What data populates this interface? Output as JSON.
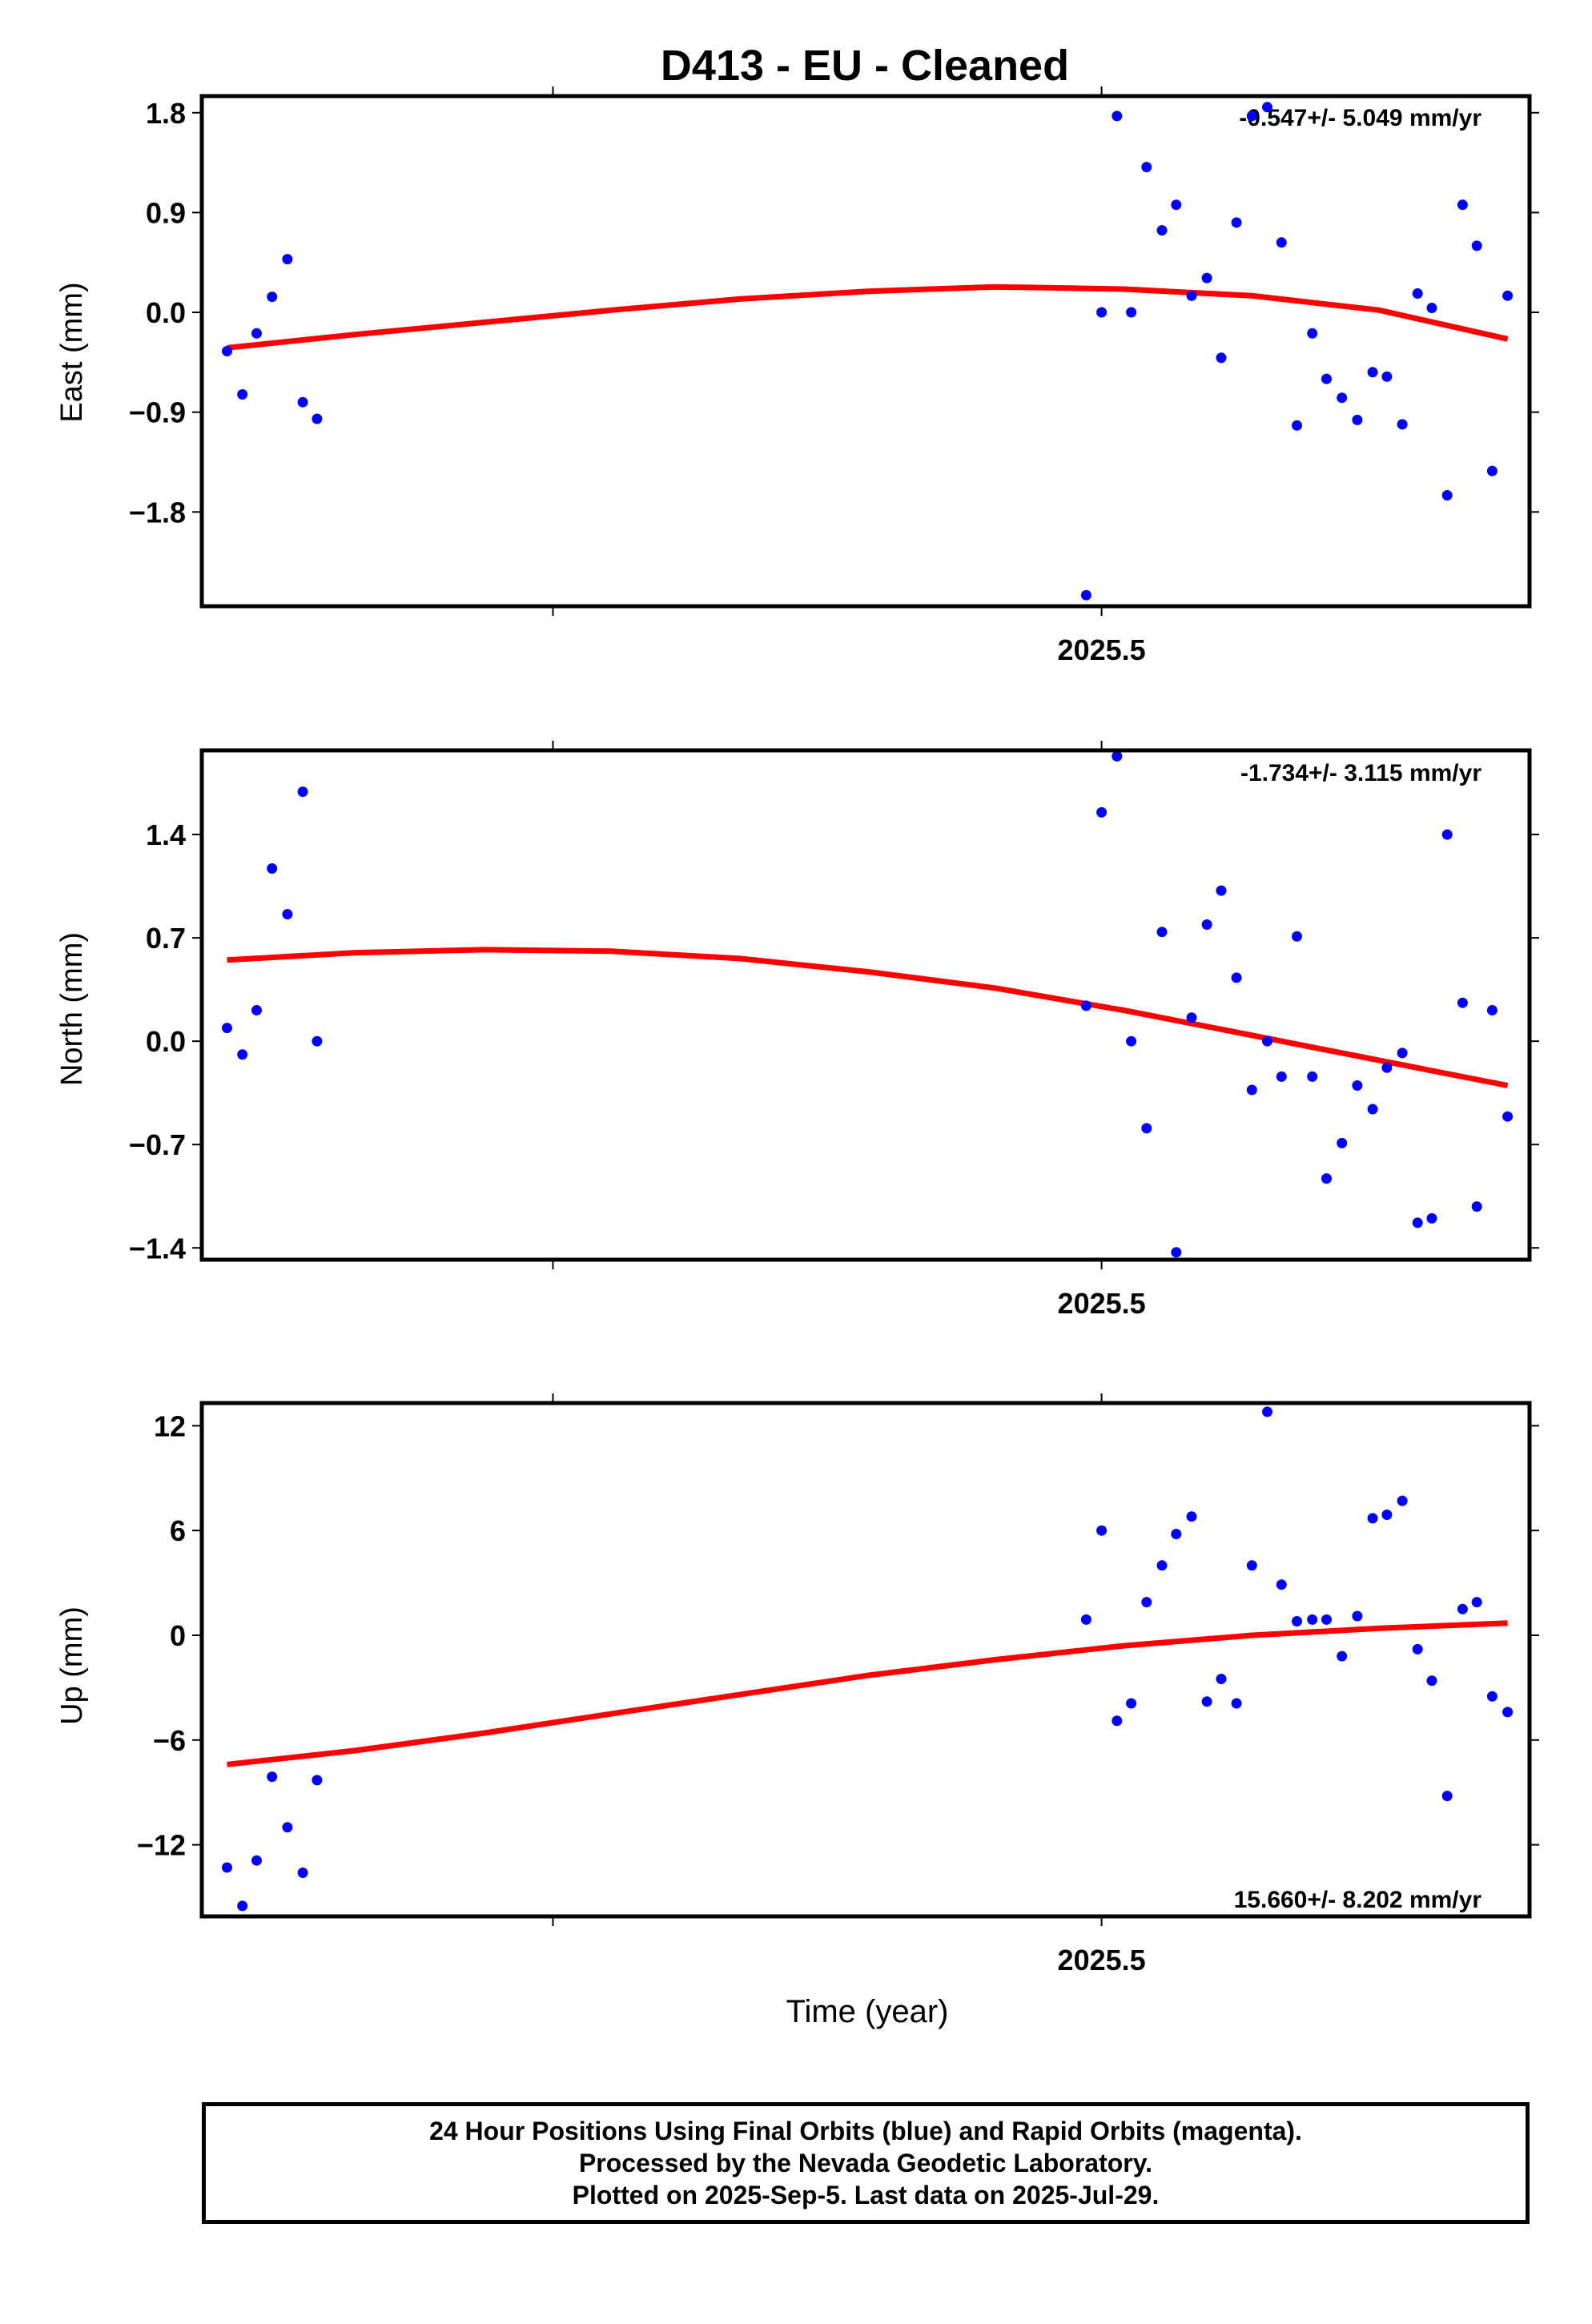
{
  "title": "D413  - EU - Cleaned",
  "xlabel": "Time (year)",
  "footer": {
    "line1": "24 Hour Positions Using Final Orbits (blue) and Rapid Orbits (magenta).",
    "line2": "Processed by the Nevada Geodetic Laboratory.",
    "line3": "Plotted on 2025-Sep-5. Last data on 2025-Jul-29."
  },
  "colors": {
    "data": "#0000ff",
    "fit": "#ff0000"
  },
  "chart_data": [
    {
      "type": "scatter",
      "ylabel": "East (mm)",
      "rate_label": "-0.547+/- 5.049 mm/yr",
      "xlim": [
        2024.68,
        2025.89
      ],
      "ylim": [
        -2.65,
        1.95
      ],
      "yticks": [
        1.8,
        0.9,
        0.0,
        -0.9,
        -1.8
      ],
      "ytick_labels": [
        "1.8",
        "0.9",
        "0.0",
        "−0.9",
        "−1.8"
      ],
      "xticks": [
        2025.0,
        2025.5
      ],
      "xtick_labels": [
        "",
        "2025.5"
      ],
      "x": [
        2024.703,
        2024.717,
        2024.73,
        2024.744,
        2024.758,
        2024.772,
        2024.785,
        2025.486,
        2025.5,
        2025.514,
        2025.527,
        2025.541,
        2025.555,
        2025.568,
        2025.582,
        2025.596,
        2025.609,
        2025.623,
        2025.637,
        2025.651,
        2025.664,
        2025.678,
        2025.692,
        2025.705,
        2025.719,
        2025.733,
        2025.747,
        2025.76,
        2025.774,
        2025.788,
        2025.801,
        2025.815,
        2025.829,
        2025.842,
        2025.856,
        2025.87
      ],
      "y": [
        -0.35,
        -0.74,
        -0.19,
        0.14,
        0.48,
        -0.81,
        -0.96,
        -2.55,
        0.0,
        1.77,
        0.0,
        1.31,
        0.74,
        0.97,
        0.15,
        0.31,
        -0.41,
        0.81,
        1.77,
        1.85,
        0.63,
        -1.02,
        -0.19,
        -0.6,
        -0.77,
        -0.97,
        -0.54,
        -0.58,
        -1.01,
        0.17,
        0.04,
        -1.65,
        0.97,
        0.6,
        -1.43,
        0.15
      ],
      "fit": {
        "x": [
          2024.703,
          2024.82,
          2024.937,
          2025.053,
          2025.17,
          2025.287,
          2025.403,
          2025.52,
          2025.637,
          2025.753,
          2025.87
        ],
        "y": [
          -0.32,
          -0.2,
          -0.09,
          0.02,
          0.12,
          0.19,
          0.23,
          0.21,
          0.15,
          0.02,
          -0.24
        ]
      }
    },
    {
      "type": "scatter",
      "ylabel": "North (mm)",
      "rate_label": "-1.734+/- 3.115 mm/yr",
      "xlim": [
        2024.68,
        2025.89
      ],
      "ylim": [
        -1.48,
        1.97
      ],
      "yticks": [
        1.4,
        0.7,
        0.0,
        -0.7,
        -1.4
      ],
      "ytick_labels": [
        "1.4",
        "0.7",
        "0.0",
        "−0.7",
        "−1.4"
      ],
      "xticks": [
        2025.0,
        2025.5
      ],
      "xtick_labels": [
        "",
        "2025.5"
      ],
      "x": [
        2024.703,
        2024.717,
        2024.73,
        2024.744,
        2024.758,
        2024.772,
        2024.785,
        2025.486,
        2025.5,
        2025.514,
        2025.527,
        2025.541,
        2025.555,
        2025.568,
        2025.582,
        2025.596,
        2025.609,
        2025.623,
        2025.637,
        2025.651,
        2025.664,
        2025.678,
        2025.692,
        2025.705,
        2025.719,
        2025.733,
        2025.747,
        2025.76,
        2025.774,
        2025.788,
        2025.801,
        2025.815,
        2025.829,
        2025.842,
        2025.856,
        2025.87
      ],
      "y": [
        0.09,
        -0.09,
        0.21,
        1.17,
        0.86,
        1.69,
        0.0,
        0.24,
        1.55,
        1.93,
        0.0,
        -0.59,
        0.74,
        -1.43,
        0.16,
        0.79,
        1.02,
        0.43,
        -0.33,
        0.0,
        -0.24,
        0.71,
        -0.24,
        -0.93,
        -0.69,
        -0.3,
        -0.46,
        -0.18,
        -0.08,
        -1.23,
        -1.2,
        1.4,
        0.26,
        -1.12,
        0.21,
        -0.51
      ],
      "fit": {
        "x": [
          2024.703,
          2024.82,
          2024.937,
          2025.053,
          2025.17,
          2025.287,
          2025.403,
          2025.52,
          2025.637,
          2025.753,
          2025.87
        ],
        "y": [
          0.55,
          0.6,
          0.62,
          0.61,
          0.56,
          0.47,
          0.36,
          0.21,
          0.04,
          -0.13,
          -0.3
        ]
      }
    },
    {
      "type": "scatter",
      "ylabel": "Up (mm)",
      "rate_label": "15.660+/- 8.202 mm/yr",
      "xlim": [
        2024.68,
        2025.89
      ],
      "ylim": [
        -16.1,
        13.3
      ],
      "yticks": [
        12,
        6,
        0,
        -6,
        -12
      ],
      "ytick_labels": [
        "12",
        "6",
        "0",
        "−6",
        "−12"
      ],
      "xticks": [
        2025.0,
        2025.5
      ],
      "xtick_labels": [
        "",
        "2025.5"
      ],
      "x": [
        2024.703,
        2024.717,
        2024.73,
        2024.744,
        2024.758,
        2024.772,
        2024.785,
        2025.486,
        2025.5,
        2025.514,
        2025.527,
        2025.541,
        2025.555,
        2025.568,
        2025.582,
        2025.596,
        2025.609,
        2025.623,
        2025.637,
        2025.651,
        2025.664,
        2025.678,
        2025.692,
        2025.705,
        2025.719,
        2025.733,
        2025.747,
        2025.76,
        2025.774,
        2025.788,
        2025.801,
        2025.815,
        2025.829,
        2025.842,
        2025.856,
        2025.87
      ],
      "y": [
        -13.3,
        -15.5,
        -12.9,
        -8.1,
        -11.0,
        -13.6,
        -8.3,
        0.9,
        6.0,
        -4.9,
        -3.9,
        1.9,
        4.0,
        5.8,
        6.8,
        -3.8,
        -2.5,
        -3.9,
        4.0,
        12.8,
        2.9,
        0.8,
        0.9,
        0.9,
        -1.2,
        1.1,
        6.7,
        6.9,
        7.7,
        -0.8,
        -2.6,
        -9.2,
        1.5,
        1.9,
        -3.5,
        -4.4
      ],
      "fit": {
        "x": [
          2024.703,
          2024.82,
          2024.937,
          2025.053,
          2025.17,
          2025.287,
          2025.403,
          2025.52,
          2025.637,
          2025.753,
          2025.87
        ],
        "y": [
          -7.4,
          -6.6,
          -5.6,
          -4.5,
          -3.4,
          -2.3,
          -1.4,
          -0.6,
          0.0,
          0.4,
          0.7
        ]
      }
    }
  ]
}
